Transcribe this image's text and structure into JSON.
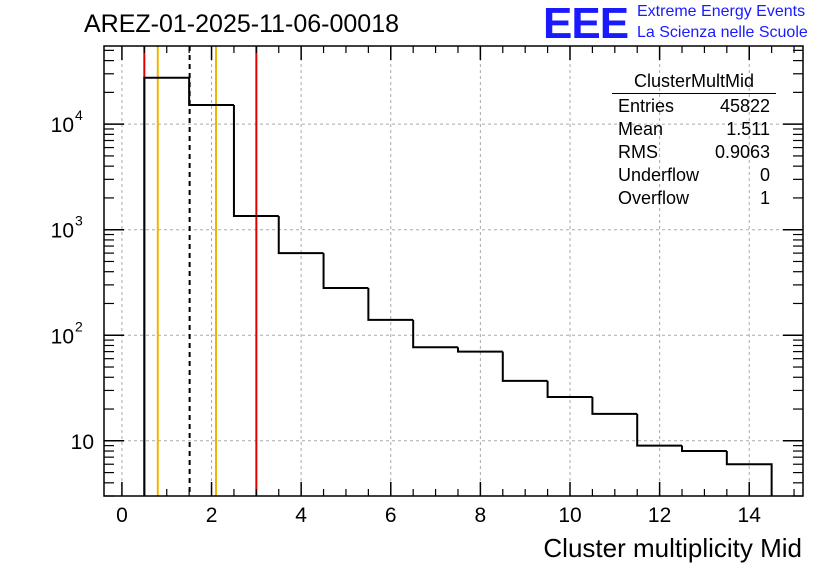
{
  "header": {
    "title": "AREZ-01-2025-11-06-00018",
    "logo_text": "EEE",
    "logo_line1": "Extreme Energy Events",
    "logo_line2": "La Scienza nelle Scuole"
  },
  "stats_box": {
    "name": "ClusterMultMid",
    "rows": [
      {
        "label": "Entries",
        "value": "45822"
      },
      {
        "label": "Mean",
        "value": "1.511"
      },
      {
        "label": "RMS",
        "value": "0.9063"
      },
      {
        "label": "Underflow",
        "value": "0"
      },
      {
        "label": "Overflow",
        "value": "1"
      }
    ]
  },
  "chart_data": {
    "type": "histogram",
    "title": "AREZ-01-2025-11-06-00018",
    "xlabel": "Cluster multiplicity Mid",
    "ylabel": "",
    "y_scale": "log",
    "xlim": [
      -0.4,
      15.2
    ],
    "ylim": [
      3,
      55000
    ],
    "grid": true,
    "x_ticks": [
      {
        "value": 0,
        "label": "0"
      },
      {
        "value": 2,
        "label": "2"
      },
      {
        "value": 4,
        "label": "4"
      },
      {
        "value": 6,
        "label": "6"
      },
      {
        "value": 8,
        "label": "8"
      },
      {
        "value": 10,
        "label": "10"
      },
      {
        "value": 12,
        "label": "12"
      },
      {
        "value": 14,
        "label": "14"
      }
    ],
    "y_ticks": [
      {
        "value": 10,
        "label": "10"
      },
      {
        "value": 100,
        "label": "10",
        "exp": "2"
      },
      {
        "value": 1000,
        "label": "10",
        "exp": "3"
      },
      {
        "value": 10000,
        "label": "10",
        "exp": "4"
      }
    ],
    "bins": [
      {
        "low": 0.5,
        "high": 1.5,
        "count": 27500
      },
      {
        "low": 1.5,
        "high": 2.5,
        "count": 15200
      },
      {
        "low": 2.5,
        "high": 3.5,
        "count": 1350
      },
      {
        "low": 3.5,
        "high": 4.5,
        "count": 600
      },
      {
        "low": 4.5,
        "high": 5.5,
        "count": 280
      },
      {
        "low": 5.5,
        "high": 6.5,
        "count": 140
      },
      {
        "low": 6.5,
        "high": 7.5,
        "count": 77
      },
      {
        "low": 7.5,
        "high": 8.5,
        "count": 70
      },
      {
        "low": 8.5,
        "high": 9.5,
        "count": 37
      },
      {
        "low": 9.5,
        "high": 10.5,
        "count": 26
      },
      {
        "low": 10.5,
        "high": 11.5,
        "count": 18
      },
      {
        "low": 11.5,
        "high": 12.5,
        "count": 9
      },
      {
        "low": 12.5,
        "high": 13.5,
        "count": 8
      },
      {
        "low": 13.5,
        "high": 14.5,
        "count": 6
      }
    ],
    "markers": [
      {
        "x": 0.5,
        "color": "#e00000",
        "style": "solid"
      },
      {
        "x": 0.8,
        "color": "#f0b400",
        "style": "solid"
      },
      {
        "x": 1.511,
        "color": "#000000",
        "style": "dashed"
      },
      {
        "x": 2.1,
        "color": "#f0b400",
        "style": "solid"
      },
      {
        "x": 3.0,
        "color": "#e00000",
        "style": "solid"
      }
    ]
  }
}
